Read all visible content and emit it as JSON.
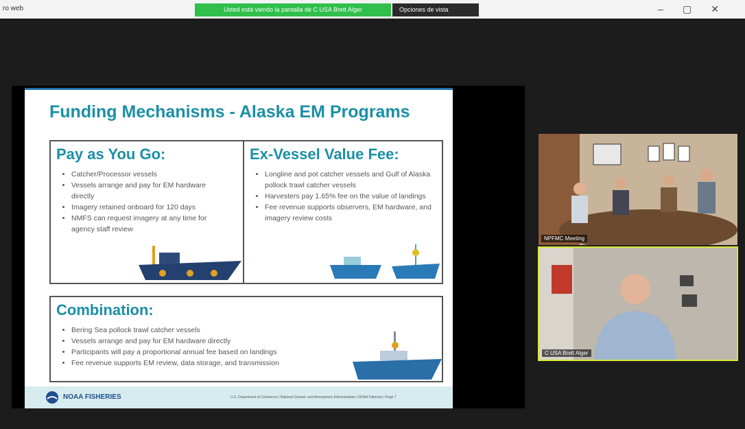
{
  "window": {
    "title": "ro web",
    "share_banner": "Usted está viendo la pantalla de C USA Brett Alger",
    "view_options": "Opciones de vista"
  },
  "slide": {
    "title": "Funding Mechanisms - Alaska EM Programs",
    "sections": [
      {
        "heading": "Pay as You Go:",
        "bullets": [
          "Catcher/Processor vessels",
          "Vessels arrange and pay for EM hardware directly",
          "Imagery retained onboard for 120 days",
          "NMFS can request imagery at any time for agency staff review"
        ]
      },
      {
        "heading": "Ex-Vessel Value Fee:",
        "bullets": [
          "Longline and pot catcher vessels and Gulf of Alaska pollock trawl catcher vessels",
          "Harvesters pay 1.65% fee on the value of landings",
          "Fee revenue supports observers, EM hardware, and imagery review costs"
        ]
      },
      {
        "heading": "Combination:",
        "bullets": [
          "Bering Sea pollock trawl catcher vessels",
          "Vessels arrange and pay for EM hardware directly",
          "Participants will pay a proportional annual fee based on landings",
          "Fee revenue supports EM review, data storage, and transmission"
        ]
      }
    ],
    "footer": {
      "logo": "NOAA FISHERIES",
      "credit": "U.S. Department of Commerce | National Oceanic and Atmospheric Administration | NOAA Fisheries | Page 7"
    }
  },
  "participants": [
    {
      "name": "NPFMC Meeting"
    },
    {
      "name": "C USA Brett Alger"
    }
  ]
}
